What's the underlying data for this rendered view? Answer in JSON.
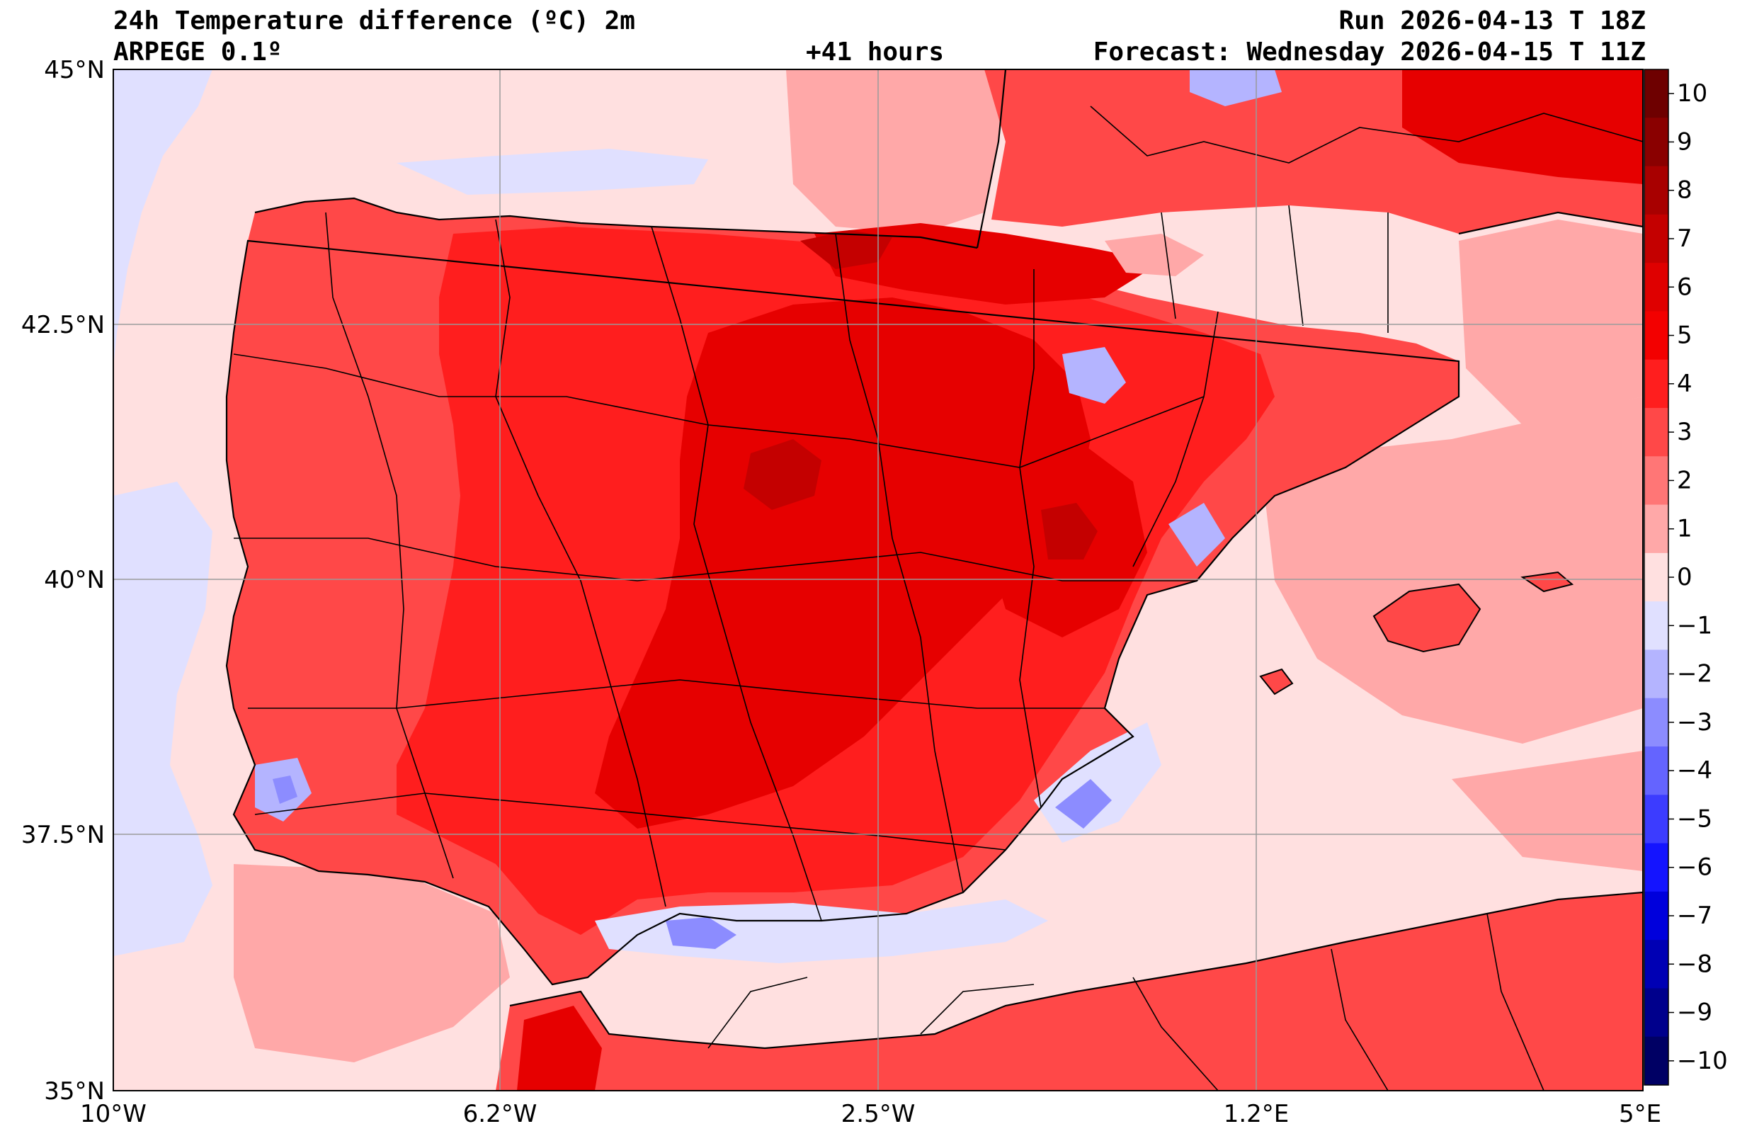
{
  "header": {
    "title": "24h Temperature difference (ºC) 2m",
    "model": "ARPEGE 0.1º",
    "lead": "+41 hours",
    "run": "Run 2026-04-13 T 18Z",
    "forecast": "Forecast: Wednesday 2026-04-15 T 11Z"
  },
  "axes": {
    "lon_ticks": [
      "10°W",
      "6.2°W",
      "2.5°W",
      "1.2°E",
      "5°E"
    ],
    "lat_ticks": [
      "45°N",
      "42.5°N",
      "40°N",
      "37.5°N",
      "35°N"
    ],
    "lon_range": [
      -10,
      5
    ],
    "lat_range": [
      35,
      45
    ]
  },
  "colorbar": {
    "levels": [
      10,
      9,
      8,
      7,
      6,
      5,
      4,
      3,
      2,
      1,
      0,
      -1,
      -2,
      -3,
      -4,
      -5,
      -6,
      -7,
      -8,
      -9,
      -10
    ],
    "labels": [
      "10",
      "9",
      "8",
      "7",
      "6",
      "5",
      "4",
      "3",
      "2",
      "1",
      "0",
      "−1",
      "−2",
      "−3",
      "−4",
      "−5",
      "−6",
      "−7",
      "−8",
      "−9",
      "−10"
    ],
    "colors_top_to_bottom": [
      "#6e0000",
      "#8a0000",
      "#a80000",
      "#c40000",
      "#df0000",
      "#f30000",
      "#ff1e1e",
      "#ff4848",
      "#ff7676",
      "#ffa8a8",
      "#ffe0e0",
      "#e0e0ff",
      "#b4b4ff",
      "#8c8cff",
      "#6464ff",
      "#3c3cff",
      "#1414ff",
      "#0000dc",
      "#0000b4",
      "#00008c",
      "#000064"
    ]
  },
  "field_colors": {
    "sea_neutral": "#ffe0e0",
    "sea_warm": "#ffa8a8",
    "cool": "#e0e0ff",
    "land_base": "#ff4848",
    "land_hot": "#ff1e1e",
    "land_hotter": "#e60000",
    "land_peak": "#c40000",
    "cold_pocket": "#8c8cff"
  }
}
